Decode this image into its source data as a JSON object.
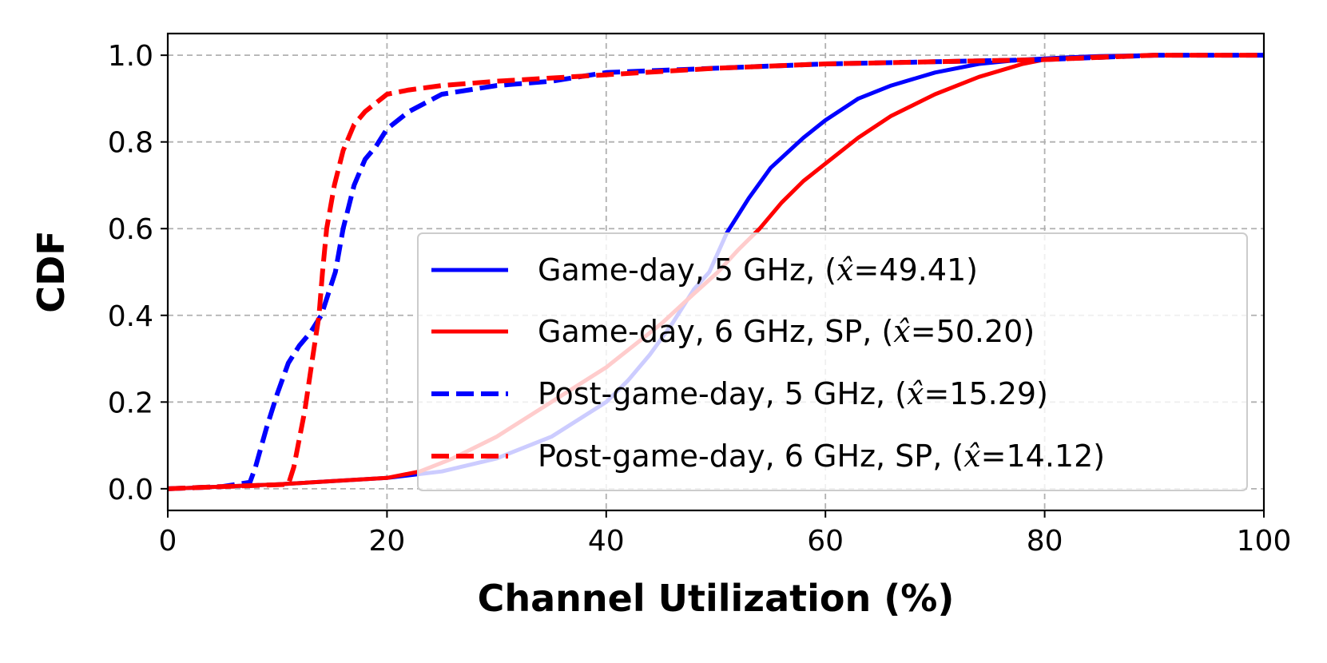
{
  "chart_data": {
    "type": "line",
    "title": "",
    "xlabel": "Channel Utilization (%)",
    "ylabel": "CDF",
    "xlim": [
      0,
      100
    ],
    "ylim": [
      -0.05,
      1.05
    ],
    "xticks": [
      0,
      20,
      40,
      60,
      80,
      100
    ],
    "xtick_labels": [
      "0",
      "20",
      "40",
      "60",
      "80",
      "100"
    ],
    "yticks": [
      0.0,
      0.2,
      0.4,
      0.6,
      0.8,
      1.0
    ],
    "ytick_labels": [
      "0.0",
      "0.2",
      "0.4",
      "0.6",
      "0.8",
      "1.0"
    ],
    "grid": true,
    "legend_position": "lower-right",
    "series": [
      {
        "name": "Game-day, 5 GHz, (x̂=49.41)",
        "legend_prefix": "Game-day, 5 GHz, (",
        "legend_var": "x̂",
        "legend_suffix": "=49.41)",
        "color": "#0000ff",
        "dash": "solid",
        "x": [
          0,
          10,
          20,
          25,
          30,
          35,
          40,
          42,
          44,
          46,
          48,
          49.41,
          51,
          53,
          55,
          58,
          60,
          63,
          66,
          70,
          74,
          78,
          82,
          85,
          90,
          100
        ],
        "y": [
          0,
          0.01,
          0.025,
          0.04,
          0.07,
          0.12,
          0.2,
          0.25,
          0.31,
          0.38,
          0.46,
          0.5,
          0.59,
          0.67,
          0.74,
          0.81,
          0.85,
          0.9,
          0.93,
          0.96,
          0.98,
          0.99,
          0.995,
          0.998,
          1.0,
          1.0
        ]
      },
      {
        "name": "Game-day, 6 GHz, SP, (x̂=50.20)",
        "legend_prefix": "Game-day, 6 GHz, SP, (",
        "legend_var": "x̂",
        "legend_suffix": "=50.20)",
        "color": "#ff0000",
        "dash": "solid",
        "x": [
          0,
          10,
          20,
          23,
          26,
          30,
          35,
          40,
          45,
          48,
          50.2,
          52,
          54,
          56,
          58,
          60,
          63,
          66,
          70,
          74,
          78,
          80,
          85,
          90,
          100
        ],
        "y": [
          0,
          0.01,
          0.025,
          0.04,
          0.07,
          0.12,
          0.2,
          0.28,
          0.38,
          0.45,
          0.5,
          0.55,
          0.6,
          0.66,
          0.71,
          0.75,
          0.81,
          0.86,
          0.91,
          0.95,
          0.98,
          0.99,
          0.997,
          1.0,
          1.0
        ]
      },
      {
        "name": "Post-game-day, 5 GHz, (x̂=15.29)",
        "legend_prefix": "Post-game-day, 5 GHz, (",
        "legend_var": "x̂",
        "legend_suffix": "=15.29)",
        "color": "#0000ff",
        "dash": "dashed",
        "x": [
          0,
          5,
          7.5,
          8,
          9,
          10,
          11,
          12,
          13,
          14,
          15.29,
          16,
          17,
          18,
          19,
          20,
          22,
          25,
          30,
          35,
          40,
          50,
          60,
          70,
          80,
          90,
          100
        ],
        "y": [
          0,
          0.005,
          0.015,
          0.05,
          0.14,
          0.22,
          0.29,
          0.33,
          0.36,
          0.4,
          0.5,
          0.6,
          0.7,
          0.76,
          0.79,
          0.83,
          0.87,
          0.91,
          0.93,
          0.94,
          0.96,
          0.97,
          0.98,
          0.985,
          0.99,
          1.0,
          1.0
        ]
      },
      {
        "name": "Post-game-day, 6 GHz, SP, (x̂=14.12)",
        "legend_prefix": "Post-game-day, 6 GHz, SP, (",
        "legend_var": "x̂",
        "legend_suffix": "=14.12)",
        "color": "#ff0000",
        "dash": "dashed",
        "x": [
          0,
          5,
          11,
          11.5,
          12.5,
          13.2,
          13.8,
          14.12,
          14.5,
          15.2,
          16,
          17,
          18,
          19,
          20,
          22,
          25,
          30,
          40,
          50,
          60,
          70,
          80,
          90,
          100
        ],
        "y": [
          0,
          0.005,
          0.01,
          0.05,
          0.18,
          0.3,
          0.4,
          0.5,
          0.6,
          0.7,
          0.78,
          0.84,
          0.87,
          0.89,
          0.91,
          0.92,
          0.93,
          0.94,
          0.955,
          0.97,
          0.98,
          0.985,
          0.99,
          1.0,
          1.0
        ]
      }
    ]
  }
}
